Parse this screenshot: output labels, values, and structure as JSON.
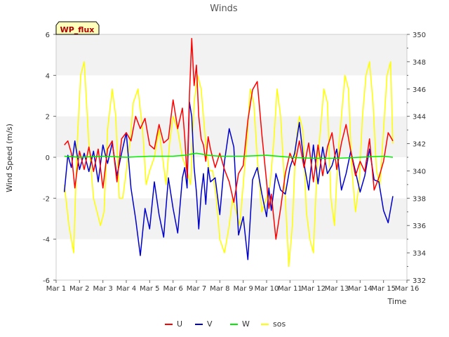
{
  "chart_data": {
    "type": "line",
    "title": "Winds",
    "badge": "WP_flux",
    "xlabel": "Time",
    "ylabel": "Wind Speed (m/s)",
    "xlim": [
      0,
      15
    ],
    "ylim": [
      -6,
      6
    ],
    "y2lim": [
      332,
      350
    ],
    "x_ticks": [
      0,
      1,
      2,
      3,
      4,
      5,
      6,
      7,
      8,
      9,
      10,
      11,
      12,
      13,
      14,
      15
    ],
    "x_tick_labels": [
      "Mar 1",
      "Mar 2",
      "Mar 3",
      "Mar 4",
      "Mar 5",
      "Mar 6",
      "Mar 7",
      "Mar 8",
      "Mar 9",
      "Mar 10",
      "Mar 11",
      "Mar 12",
      "Mar 13",
      "Mar 14",
      "Mar 15",
      "Mar 16"
    ],
    "y_ticks": [
      -6,
      -4,
      -2,
      0,
      2,
      4,
      6
    ],
    "y_tick_labels": [
      "-6",
      "-4",
      "-2",
      "0",
      "2",
      "4",
      "6"
    ],
    "y2_ticks": [
      332,
      334,
      336,
      338,
      340,
      342,
      344,
      346,
      348,
      350
    ],
    "y2_tick_labels": [
      "332",
      "334",
      "336",
      "338",
      "340",
      "342",
      "344",
      "346",
      "348",
      "350"
    ],
    "legend": [
      "U",
      "V",
      "W",
      "sos"
    ],
    "series": [
      {
        "name": "U",
        "axis": "left",
        "color": "#ff0000",
        "x": [
          0.35,
          0.5,
          0.65,
          0.8,
          1.0,
          1.2,
          1.4,
          1.6,
          1.8,
          2.0,
          2.2,
          2.4,
          2.6,
          2.8,
          3.0,
          3.2,
          3.4,
          3.6,
          3.8,
          4.0,
          4.2,
          4.4,
          4.6,
          4.8,
          5.0,
          5.2,
          5.4,
          5.5,
          5.6,
          5.7,
          5.8,
          5.9,
          6.0,
          6.1,
          6.2,
          6.3,
          6.4,
          6.5,
          6.6,
          6.8,
          7.0,
          7.2,
          7.4,
          7.6,
          7.8,
          8.0,
          8.2,
          8.4,
          8.6,
          8.8,
          9.0,
          9.1,
          9.2,
          9.4,
          9.6,
          9.8,
          10.0,
          10.2,
          10.4,
          10.6,
          10.8,
          11.0,
          11.2,
          11.4,
          11.6,
          11.8,
          12.0,
          12.2,
          12.4,
          12.6,
          12.8,
          13.0,
          13.2,
          13.4,
          13.6,
          13.8,
          14.0,
          14.2,
          14.4
        ],
        "values": [
          0.6,
          0.8,
          0.2,
          -1.5,
          0.3,
          -0.6,
          0.5,
          -0.7,
          0.4,
          -1.5,
          0.4,
          0.8,
          -1.2,
          0.9,
          1.2,
          0.8,
          2.0,
          1.4,
          1.9,
          0.6,
          0.4,
          1.6,
          0.7,
          0.9,
          2.8,
          1.4,
          2.4,
          1.0,
          -1.0,
          3.0,
          5.8,
          3.5,
          4.5,
          2.0,
          0.9,
          0.6,
          -0.2,
          1.0,
          0.4,
          -0.5,
          0.2,
          -0.6,
          -1.2,
          -2.2,
          -0.8,
          -0.4,
          1.8,
          3.3,
          3.7,
          1.1,
          -1.2,
          -2.5,
          -1.8,
          -4.0,
          -2.5,
          -0.8,
          0.2,
          -0.4,
          0.8,
          -0.5,
          0.7,
          -1.2,
          0.6,
          -0.9,
          0.5,
          1.2,
          -0.6,
          0.7,
          1.6,
          0.3,
          -0.9,
          -0.2,
          -0.7,
          0.9,
          -1.6,
          -1.0,
          -0.2,
          1.2,
          0.8
        ]
      },
      {
        "name": "V",
        "axis": "left",
        "color": "#0000cc",
        "x": [
          0.35,
          0.5,
          0.65,
          0.8,
          1.0,
          1.2,
          1.4,
          1.6,
          1.8,
          2.0,
          2.2,
          2.4,
          2.6,
          2.8,
          3.0,
          3.2,
          3.4,
          3.6,
          3.8,
          4.0,
          4.2,
          4.4,
          4.6,
          4.8,
          5.0,
          5.2,
          5.4,
          5.5,
          5.6,
          5.7,
          5.8,
          5.9,
          6.0,
          6.1,
          6.2,
          6.3,
          6.4,
          6.5,
          6.6,
          6.8,
          7.0,
          7.2,
          7.4,
          7.6,
          7.8,
          8.0,
          8.2,
          8.4,
          8.6,
          8.8,
          9.0,
          9.1,
          9.2,
          9.4,
          9.6,
          9.8,
          10.0,
          10.2,
          10.4,
          10.6,
          10.8,
          11.0,
          11.2,
          11.4,
          11.6,
          11.8,
          12.0,
          12.2,
          12.4,
          12.6,
          12.8,
          13.0,
          13.2,
          13.4,
          13.6,
          13.8,
          14.0,
          14.2,
          14.4
        ],
        "values": [
          -1.7,
          0.1,
          -0.5,
          0.8,
          -0.6,
          0.2,
          -0.7,
          0.3,
          -1.2,
          0.6,
          -0.3,
          0.7,
          -0.9,
          0.2,
          1.2,
          -1.5,
          -3.0,
          -4.8,
          -2.5,
          -3.5,
          -1.2,
          -2.8,
          -3.9,
          -1.0,
          -2.5,
          -3.7,
          -1.0,
          -0.5,
          -1.5,
          2.7,
          2.0,
          -0.5,
          -1.7,
          -3.5,
          -1.8,
          -0.8,
          -2.3,
          -0.5,
          -1.2,
          -1.0,
          -2.8,
          -0.2,
          1.4,
          0.5,
          -3.8,
          -2.9,
          -5.0,
          -1.1,
          -0.5,
          -1.8,
          -2.9,
          -1.5,
          -2.6,
          -0.8,
          -1.6,
          -1.8,
          -0.5,
          0.2,
          1.7,
          -0.3,
          -1.6,
          0.6,
          -1.3,
          0.5,
          -0.8,
          -0.4,
          0.4,
          -1.6,
          -0.8,
          0.3,
          -0.7,
          -1.7,
          -0.9,
          0.4,
          -1.1,
          -1.2,
          -2.6,
          -3.2,
          -1.9
        ]
      },
      {
        "name": "W",
        "axis": "left",
        "color": "#00ee00",
        "x": [
          0.35,
          1.0,
          2.0,
          3.0,
          4.0,
          5.0,
          5.5,
          6.0,
          6.5,
          7.0,
          8.0,
          9.0,
          10.0,
          11.0,
          12.0,
          13.0,
          14.0,
          14.4
        ],
        "values": [
          0.05,
          0.0,
          0.05,
          0.0,
          0.05,
          0.05,
          0.1,
          0.2,
          0.1,
          0.05,
          0.05,
          0.1,
          0.0,
          -0.05,
          -0.05,
          0.0,
          0.05,
          0.0
        ]
      },
      {
        "name": "sos",
        "axis": "right",
        "color": "#ffff00",
        "x": [
          0.35,
          0.55,
          0.75,
          0.9,
          1.05,
          1.2,
          1.4,
          1.6,
          1.75,
          1.9,
          2.05,
          2.2,
          2.4,
          2.55,
          2.7,
          2.85,
          3.0,
          3.15,
          3.3,
          3.5,
          3.7,
          3.85,
          4.0,
          4.2,
          4.4,
          4.55,
          4.7,
          4.85,
          5.0,
          5.2,
          5.4,
          5.6,
          5.75,
          5.9,
          6.05,
          6.2,
          6.4,
          6.55,
          6.7,
          6.85,
          7.0,
          7.2,
          7.4,
          7.55,
          7.7,
          7.85,
          8.0,
          8.15,
          8.3,
          8.45,
          8.6,
          8.8,
          9.0,
          9.15,
          9.3,
          9.45,
          9.6,
          9.8,
          9.95,
          10.1,
          10.25,
          10.4,
          10.55,
          10.7,
          10.85,
          11.0,
          11.15,
          11.3,
          11.45,
          11.6,
          11.75,
          11.9,
          12.05,
          12.2,
          12.35,
          12.5,
          12.65,
          12.8,
          12.95,
          13.1,
          13.25,
          13.4,
          13.55,
          13.7,
          13.85,
          14.0,
          14.15,
          14.3,
          14.4
        ],
        "values": [
          339,
          336,
          334,
          342,
          347,
          348,
          342,
          338,
          337,
          336,
          337,
          343,
          346,
          344,
          338,
          338,
          340,
          342,
          345,
          346,
          343,
          339,
          340,
          341,
          343,
          341,
          339,
          342,
          344,
          343,
          341,
          340,
          339,
          345,
          347,
          346,
          342,
          340,
          340,
          338,
          335,
          334,
          336,
          338,
          337,
          336,
          339,
          342,
          346,
          345,
          341,
          337,
          338,
          339,
          342,
          346,
          344,
          338,
          333,
          336,
          342,
          344,
          343,
          337,
          335,
          334,
          340,
          343,
          346,
          345,
          338,
          336,
          341,
          344,
          347,
          346,
          340,
          337,
          339,
          344,
          347,
          348,
          345,
          340,
          339,
          343,
          347,
          348,
          342
        ]
      }
    ]
  }
}
